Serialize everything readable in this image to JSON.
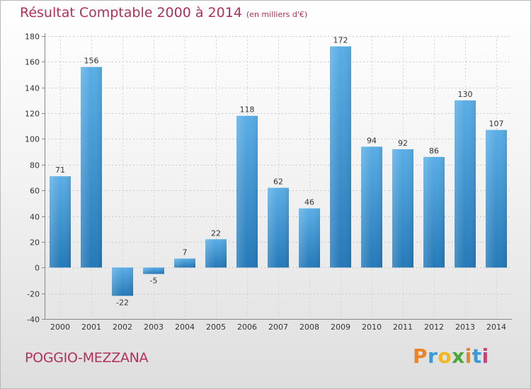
{
  "title": "Résultat Comptable 2000 à 2014",
  "subtitle": "(en milliers d'€)",
  "commune": "POGGIO-MEZZANA",
  "logo": {
    "text": "Proxiti",
    "letters": [
      {
        "char": "P",
        "color": "#e8842a"
      },
      {
        "char": "r",
        "color": "#3a9ad8"
      },
      {
        "char": "o",
        "color": "#f0b81c"
      },
      {
        "char": "x",
        "color": "#4aa83a"
      },
      {
        "char": "i",
        "color": "#e8842a"
      },
      {
        "char": "t",
        "color": "#3a9ad8"
      },
      {
        "char": "i",
        "color": "#d83a7a"
      }
    ]
  },
  "colors": {
    "accent": "#b0305a",
    "bar_top": "#5aaee6",
    "bar_bottom": "#2479b8",
    "text": "#333333"
  },
  "chart_data": {
    "type": "bar",
    "title": "Résultat Comptable 2000 à 2014",
    "subtitle": "(en milliers d'€)",
    "xlabel": "",
    "ylabel": "",
    "categories": [
      "2000",
      "2001",
      "2002",
      "2003",
      "2004",
      "2005",
      "2006",
      "2007",
      "2008",
      "2009",
      "2010",
      "2011",
      "2012",
      "2013",
      "2014"
    ],
    "values": [
      71,
      156,
      -22,
      -5,
      7,
      22,
      118,
      62,
      46,
      172,
      94,
      92,
      86,
      130,
      107
    ],
    "ylim": [
      -40,
      180
    ],
    "yticks": [
      -40,
      -20,
      0,
      20,
      40,
      60,
      80,
      100,
      120,
      140,
      160,
      180
    ],
    "grid": true,
    "legend": "none"
  }
}
